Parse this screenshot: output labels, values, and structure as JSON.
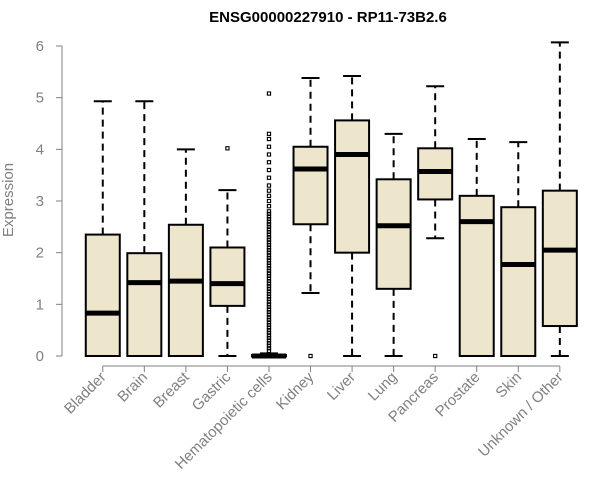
{
  "chart_data": {
    "type": "boxplot",
    "title": "ENSG00000227910 - RP11-73B2.6",
    "xlabel": "",
    "ylabel": "Expression",
    "ylim": [
      0,
      6.2
    ],
    "yticks": [
      0,
      1,
      2,
      3,
      4,
      5,
      6
    ],
    "grid": false,
    "colors": {
      "box_fill": "#ede5cc",
      "stroke": "#000000",
      "axis_text": "#808080"
    },
    "categories": [
      "Bladder",
      "Brain",
      "Breast",
      "Gastric",
      "Hematopoietic cells",
      "Kidney",
      "Liver",
      "Lung",
      "Pancreas",
      "Prostate",
      "Skin",
      "Unknown / Other"
    ],
    "boxes": [
      {
        "min": 0,
        "q1": 0,
        "median": 0.83,
        "q3": 2.35,
        "max": 4.93,
        "outliers": []
      },
      {
        "min": 0,
        "q1": 0,
        "median": 1.42,
        "q3": 1.99,
        "max": 4.93,
        "outliers": []
      },
      {
        "min": 0,
        "q1": 0,
        "median": 1.45,
        "q3": 2.54,
        "max": 4.0,
        "outliers": []
      },
      {
        "min": 0,
        "q1": 0.97,
        "median": 1.4,
        "q3": 2.1,
        "max": 3.21,
        "outliers": [
          4.02
        ]
      },
      {
        "min": 0,
        "q1": 0,
        "median": 0,
        "q3": 0.02,
        "max": 0.05,
        "outliers": [
          0.1,
          0.15,
          0.2,
          0.25,
          0.3,
          0.35,
          0.4,
          0.45,
          0.5,
          0.55,
          0.6,
          0.65,
          0.7,
          0.75,
          0.8,
          0.85,
          0.9,
          0.95,
          1.0,
          1.05,
          1.1,
          1.15,
          1.2,
          1.25,
          1.3,
          1.35,
          1.4,
          1.45,
          1.5,
          1.55,
          1.6,
          1.65,
          1.7,
          1.75,
          1.8,
          1.85,
          1.9,
          1.95,
          2.0,
          2.05,
          2.1,
          2.15,
          2.2,
          2.25,
          2.3,
          2.35,
          2.4,
          2.45,
          2.5,
          2.55,
          2.6,
          2.65,
          2.7,
          2.75,
          2.8,
          2.9,
          3.0,
          3.1,
          3.2,
          3.3,
          3.45,
          3.6,
          3.75,
          3.9,
          4.05,
          4.2,
          4.3,
          5.08
        ]
      },
      {
        "min": 1.22,
        "q1": 2.55,
        "median": 3.62,
        "q3": 4.05,
        "max": 5.38,
        "outliers": [
          0
        ]
      },
      {
        "min": 0,
        "q1": 2.0,
        "median": 3.9,
        "q3": 4.56,
        "max": 5.42,
        "outliers": []
      },
      {
        "min": 0,
        "q1": 1.3,
        "median": 2.52,
        "q3": 3.42,
        "max": 4.3,
        "outliers": []
      },
      {
        "min": 2.28,
        "q1": 3.03,
        "median": 3.57,
        "q3": 4.02,
        "max": 5.22,
        "outliers": [
          0
        ]
      },
      {
        "min": 0,
        "q1": 0,
        "median": 2.6,
        "q3": 3.1,
        "max": 4.2,
        "outliers": []
      },
      {
        "min": 0,
        "q1": 0,
        "median": 1.77,
        "q3": 2.88,
        "max": 4.14,
        "outliers": []
      },
      {
        "min": 0,
        "q1": 0.58,
        "median": 2.05,
        "q3": 3.2,
        "max": 6.07,
        "outliers": []
      }
    ]
  }
}
